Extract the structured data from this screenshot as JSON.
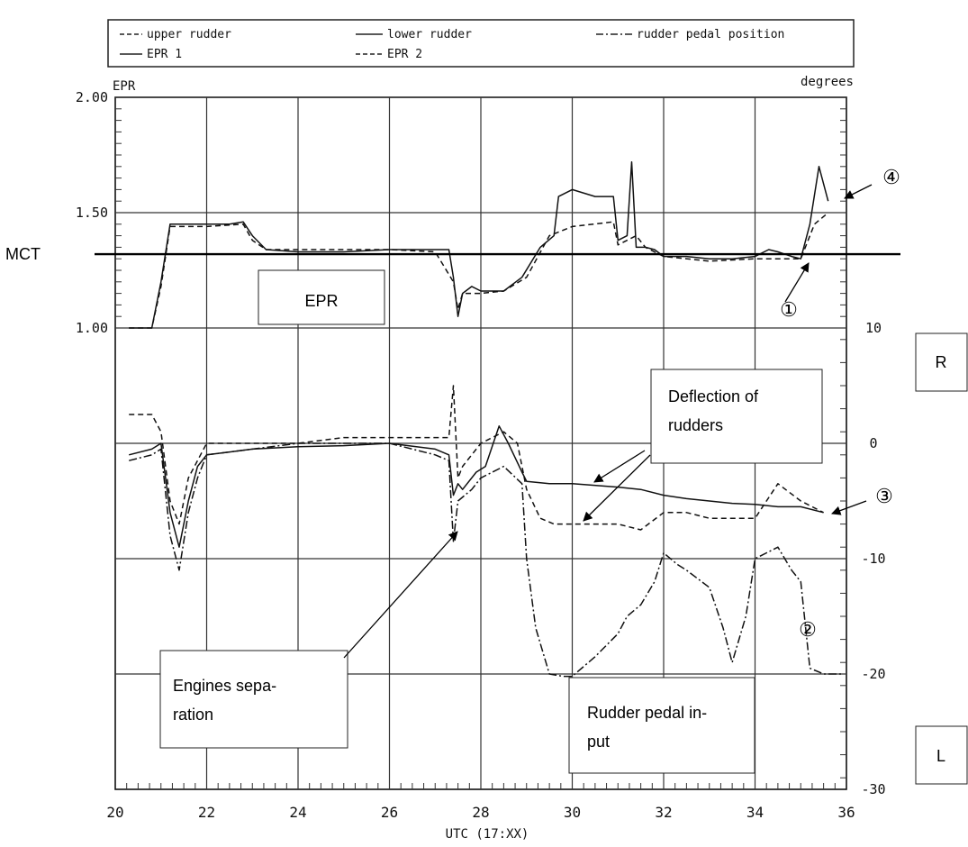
{
  "chart_data": {
    "type": "line",
    "xlabel": "UTC (17:XX)",
    "left_axis": {
      "title": "EPR",
      "ticks": [
        1.0,
        1.5,
        2.0
      ],
      "tick_labels": [
        "1.00",
        "1.50",
        "2.00"
      ],
      "range": [
        1.0,
        2.0
      ]
    },
    "right_axis": {
      "title": "degrees",
      "ticks": [
        10,
        0,
        -10,
        -20,
        -30
      ],
      "tick_labels": [
        "10",
        "0",
        "-10",
        "-20",
        "-30"
      ],
      "range": [
        -30,
        10
      ]
    },
    "x_axis": {
      "ticks": [
        20,
        22,
        24,
        26,
        28,
        30,
        32,
        34,
        36
      ],
      "tick_labels": [
        "20",
        "22",
        "24",
        "26",
        "28",
        "30",
        "32",
        "34",
        "36"
      ],
      "range": [
        20,
        36
      ]
    },
    "grid": true,
    "legend": {
      "placement": "top",
      "entries": [
        {
          "label": "upper rudder",
          "style": "dashed"
        },
        {
          "label": "lower rudder",
          "style": "solid"
        },
        {
          "label": "rudder pedal position",
          "style": "dash-dot"
        },
        {
          "label": "EPR 1",
          "style": "solid"
        },
        {
          "label": "EPR 2",
          "style": "dashed"
        }
      ]
    },
    "series": [
      {
        "name": "EPR 1",
        "axis": "left",
        "style": "solid",
        "x": [
          20.3,
          20.8,
          21.0,
          21.2,
          21.5,
          22.0,
          22.5,
          22.8,
          23.0,
          23.3,
          24.0,
          25.0,
          26.0,
          27.0,
          27.3,
          27.4,
          27.5,
          27.6,
          27.8,
          28.0,
          28.5,
          28.9,
          29.3,
          29.6,
          29.7,
          30.0,
          30.5,
          30.9,
          31.0,
          31.2,
          31.3,
          31.4,
          31.6,
          31.8,
          32.0,
          32.5,
          33.0,
          33.5,
          34.0,
          34.3,
          34.5,
          34.8,
          35.0,
          35.2,
          35.4,
          35.6
        ],
        "y": [
          1.0,
          1.0,
          1.2,
          1.45,
          1.45,
          1.45,
          1.45,
          1.46,
          1.4,
          1.34,
          1.33,
          1.33,
          1.34,
          1.34,
          1.34,
          1.22,
          1.05,
          1.15,
          1.18,
          1.16,
          1.16,
          1.22,
          1.35,
          1.4,
          1.57,
          1.6,
          1.57,
          1.57,
          1.38,
          1.4,
          1.72,
          1.35,
          1.35,
          1.34,
          1.31,
          1.31,
          1.3,
          1.3,
          1.31,
          1.34,
          1.33,
          1.31,
          1.3,
          1.45,
          1.7,
          1.55
        ]
      },
      {
        "name": "EPR 2",
        "axis": "left",
        "style": "dashed",
        "x": [
          20.3,
          20.8,
          21.0,
          21.2,
          22.0,
          22.8,
          23.0,
          23.3,
          26.0,
          27.0,
          27.4,
          27.5,
          27.6,
          28.0,
          28.5,
          29.0,
          29.5,
          30.0,
          30.9,
          31.0,
          31.2,
          31.4,
          31.6,
          32.0,
          33.0,
          34.0,
          35.0,
          35.3,
          35.6
        ],
        "y": [
          1.0,
          1.0,
          1.18,
          1.44,
          1.44,
          1.45,
          1.38,
          1.34,
          1.34,
          1.33,
          1.2,
          1.08,
          1.15,
          1.15,
          1.16,
          1.22,
          1.4,
          1.44,
          1.46,
          1.36,
          1.38,
          1.4,
          1.35,
          1.31,
          1.29,
          1.3,
          1.3,
          1.45,
          1.5
        ]
      },
      {
        "name": "upper rudder",
        "axis": "right",
        "style": "dashed",
        "x": [
          20.3,
          20.8,
          21.0,
          21.2,
          21.4,
          21.6,
          22.0,
          23.0,
          24.0,
          25.0,
          26.0,
          27.0,
          27.3,
          27.4,
          27.5,
          27.6,
          28.0,
          28.5,
          28.8,
          29.0,
          29.3,
          29.6,
          30.0,
          31.0,
          31.5,
          32.0,
          32.5,
          33.0,
          33.5,
          34.0,
          34.5,
          35.0,
          35.5
        ],
        "y": [
          2.5,
          2.5,
          1.0,
          -5.0,
          -7.0,
          -3.0,
          0.0,
          0.0,
          0.0,
          0.5,
          0.5,
          0.5,
          0.5,
          5.0,
          -3.0,
          -2.0,
          0.0,
          1.0,
          0.0,
          -4.0,
          -6.5,
          -7.0,
          -7.0,
          -7.0,
          -7.5,
          -6.0,
          -6.0,
          -6.5,
          -6.5,
          -6.5,
          -3.5,
          -5.0,
          -6.0
        ]
      },
      {
        "name": "lower rudder",
        "axis": "right",
        "style": "solid",
        "x": [
          20.3,
          20.8,
          21.0,
          21.2,
          21.4,
          21.6,
          21.8,
          22.0,
          23.0,
          24.0,
          25.0,
          26.0,
          27.0,
          27.3,
          27.4,
          27.5,
          27.6,
          27.9,
          28.1,
          28.4,
          28.6,
          28.9,
          29.0,
          29.5,
          30.0,
          31.0,
          31.5,
          32.0,
          32.5,
          33.0,
          33.5,
          34.0,
          34.5,
          35.0,
          35.5
        ],
        "y": [
          -1.0,
          -0.5,
          0.0,
          -6.0,
          -9.0,
          -5.0,
          -2.0,
          -1.0,
          -0.5,
          -0.3,
          -0.2,
          0.0,
          -0.5,
          -1.0,
          -4.5,
          -3.5,
          -4.0,
          -2.5,
          -2.0,
          1.5,
          0.0,
          -2.5,
          -3.3,
          -3.5,
          -3.5,
          -3.8,
          -4.0,
          -4.5,
          -4.8,
          -5.0,
          -5.2,
          -5.3,
          -5.5,
          -5.5,
          -6.0
        ]
      },
      {
        "name": "rudder pedal position",
        "axis": "right",
        "style": "dash-dot",
        "x": [
          20.3,
          20.8,
          21.0,
          21.2,
          21.4,
          21.6,
          21.8,
          22.0,
          23.0,
          24.0,
          25.0,
          26.0,
          27.0,
          27.3,
          27.4,
          27.5,
          27.8,
          28.0,
          28.5,
          28.9,
          29.0,
          29.2,
          29.5,
          29.8,
          30.0,
          30.5,
          31.0,
          31.2,
          31.5,
          31.8,
          32.0,
          32.3,
          32.5,
          33.0,
          33.3,
          33.5,
          33.8,
          34.0,
          34.5,
          34.8,
          35.0,
          35.2,
          35.5,
          35.9
        ],
        "y": [
          -1.5,
          -1.0,
          -0.5,
          -8.0,
          -11.0,
          -6.0,
          -3.0,
          -1.0,
          -0.5,
          0.0,
          0.0,
          0.0,
          -1.0,
          -1.5,
          -8.5,
          -5.0,
          -4.0,
          -3.0,
          -2.0,
          -3.5,
          -10.0,
          -16.0,
          -20.0,
          -20.2,
          -20.2,
          -18.5,
          -16.5,
          -15.0,
          -14.0,
          -12.0,
          -9.5,
          -10.5,
          -11.0,
          -12.5,
          -16.0,
          -19.0,
          -15.0,
          -10.0,
          -9.0,
          -11.0,
          -12.0,
          -19.5,
          -20.0,
          -20.0
        ]
      }
    ],
    "reference_lines": [
      {
        "label": "MCT",
        "axis": "left",
        "value": 1.32
      }
    ],
    "annotations": [
      {
        "id": "epr",
        "text": "EPR"
      },
      {
        "id": "deflection",
        "text": "Deflection of rudders"
      },
      {
        "id": "engines",
        "text": "Engines separation"
      },
      {
        "id": "pedal",
        "text": "Rudder pedal input"
      },
      {
        "id": "r",
        "text": "R"
      },
      {
        "id": "l",
        "text": "L"
      }
    ],
    "callouts": [
      {
        "id": "1",
        "label": "①"
      },
      {
        "id": "2",
        "label": "②"
      },
      {
        "id": "3",
        "label": "③"
      },
      {
        "id": "4",
        "label": "④"
      }
    ]
  },
  "boxes": {
    "epr": {
      "line1": "EPR"
    },
    "deflection": {
      "line1": "Deflection of",
      "line2": "rudders"
    },
    "engines": {
      "line1": "Engines sepa-",
      "line2": "ration"
    },
    "pedal": {
      "line1": "Rudder pedal in-",
      "line2": "put"
    },
    "r": {
      "line1": "R"
    },
    "l": {
      "line1": "L"
    }
  },
  "mct_label": "MCT",
  "legend_text": {
    "upper": "upper rudder",
    "lower": "lower rudder",
    "pedal": "rudder pedal position",
    "epr1": "EPR 1",
    "epr2": "EPR 2"
  }
}
